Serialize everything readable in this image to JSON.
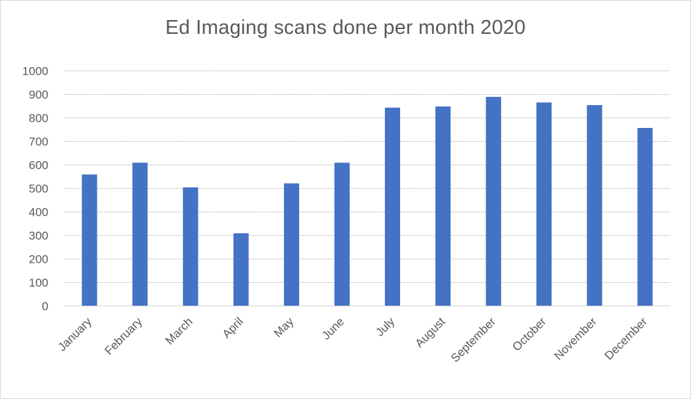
{
  "chart_data": {
    "type": "bar",
    "title": "Ed Imaging scans done per month 2020",
    "categories": [
      "January",
      "February",
      "March",
      "April",
      "May",
      "June",
      "July",
      "August",
      "September",
      "October",
      "November",
      "December"
    ],
    "values": [
      558,
      608,
      503,
      308,
      520,
      608,
      842,
      847,
      888,
      864,
      853,
      756
    ],
    "ylim": [
      0,
      1000
    ],
    "yticks": [
      0,
      100,
      200,
      300,
      400,
      500,
      600,
      700,
      800,
      900,
      1000
    ],
    "grid": true,
    "legend": "none",
    "bar_color": "#4472c4",
    "grid_color": "#bfbfbf",
    "text_color": "#595959"
  }
}
